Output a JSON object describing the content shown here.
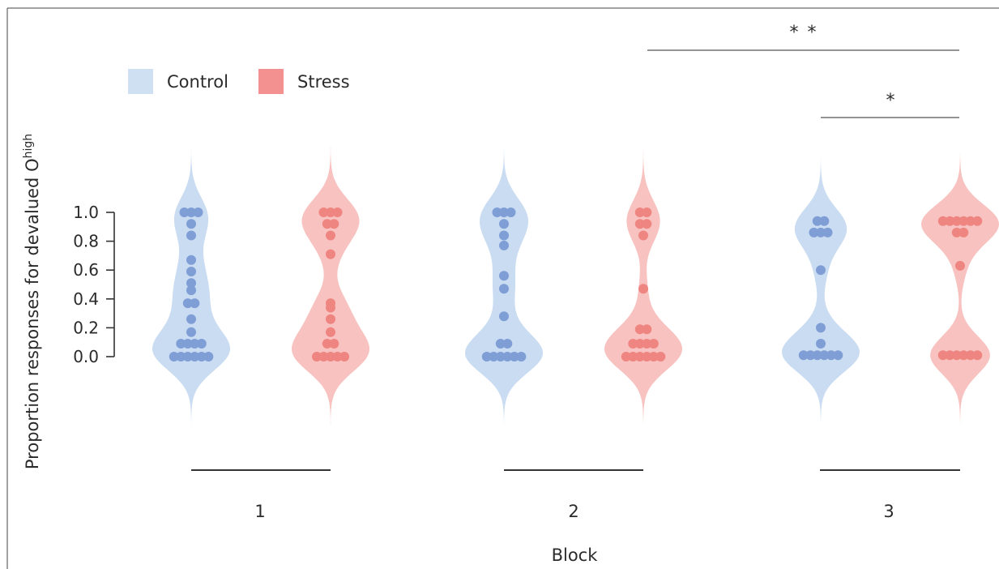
{
  "colors": {
    "control_fill": "#cadcf1",
    "control_point": "#7f9ed6",
    "stress_fill": "#f7c2c0",
    "stress_point": "#ef8580",
    "stress_legend": "#f29190",
    "control_legend": "#cfe0f3",
    "axis": "#333333"
  },
  "chart_data": {
    "type": "violin",
    "title": "",
    "xlabel": "Block",
    "ylabel": "Proportion responses for devalued O",
    "ylabel_superscript": "high",
    "yticks": [
      "0.0",
      "0.2",
      "0.4",
      "0.6",
      "0.8",
      "1.0"
    ],
    "ylim": [
      0,
      1
    ],
    "categories": [
      "1",
      "2",
      "3"
    ],
    "legend": {
      "placement": "top-left",
      "items": [
        {
          "label": "Control",
          "color": "#cfe0f3"
        },
        {
          "label": "Stress",
          "color": "#f29190"
        }
      ]
    },
    "series": [
      {
        "name": "Control",
        "groups": [
          {
            "block": "1",
            "points": [
              1.0,
              1.0,
              1.0,
              0.92,
              0.84,
              0.67,
              0.59,
              0.51,
              0.46,
              0.37,
              0.37,
              0.26,
              0.17,
              0.09,
              0.09,
              0.09,
              0.09,
              0.0,
              0.0,
              0.0,
              0.0,
              0.0,
              0.0
            ]
          },
          {
            "block": "2",
            "points": [
              1.0,
              1.0,
              1.0,
              0.92,
              0.84,
              0.77,
              0.56,
              0.47,
              0.28,
              0.09,
              0.09,
              0.0,
              0.0,
              0.0,
              0.0,
              0.0,
              0.0
            ]
          },
          {
            "block": "3",
            "points": [
              0.94,
              0.94,
              0.86,
              0.86,
              0.86,
              0.6,
              0.2,
              0.09,
              0.01,
              0.01,
              0.01,
              0.01,
              0.01,
              0.01
            ]
          }
        ]
      },
      {
        "name": "Stress",
        "groups": [
          {
            "block": "1",
            "points": [
              1.0,
              1.0,
              1.0,
              0.92,
              0.92,
              0.84,
              0.71,
              0.37,
              0.34,
              0.26,
              0.17,
              0.09,
              0.09,
              0.0,
              0.0,
              0.0,
              0.0,
              0.0
            ]
          },
          {
            "block": "2",
            "points": [
              1.0,
              1.0,
              0.92,
              0.92,
              0.84,
              0.47,
              0.19,
              0.19,
              0.09,
              0.09,
              0.09,
              0.09,
              0.0,
              0.0,
              0.0,
              0.0,
              0.0,
              0.0
            ]
          },
          {
            "block": "3",
            "points": [
              0.94,
              0.94,
              0.94,
              0.94,
              0.94,
              0.94,
              0.86,
              0.86,
              0.63,
              0.01,
              0.01,
              0.01,
              0.01,
              0.01,
              0.01
            ]
          }
        ]
      }
    ],
    "significance": [
      {
        "label": "* *",
        "from": "Block 2 Stress",
        "to": "Block 3 Stress"
      },
      {
        "label": "*",
        "from": "Block 3 Control",
        "to": "Block 3 Stress"
      }
    ]
  }
}
